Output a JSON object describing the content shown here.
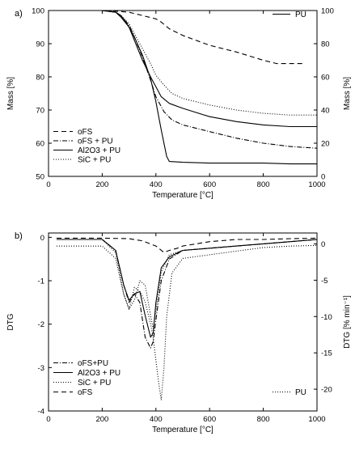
{
  "chart_data": [
    {
      "panel_label": "a)",
      "type": "line",
      "xlabel": "Temperature [°C]",
      "ylabel": "Mass [%]",
      "ylabel_right": "Mass [%]",
      "xlim": [
        0,
        1000
      ],
      "ylim": [
        50,
        100
      ],
      "ylim_right": [
        0,
        100
      ],
      "x_ticks": [
        0,
        200,
        400,
        600,
        800,
        1000
      ],
      "y_ticks": [
        50,
        60,
        70,
        80,
        90,
        100
      ],
      "y_ticks_right": [
        0,
        20,
        40,
        60,
        80,
        100
      ],
      "grid": false,
      "legend_left_position": "bottom-left",
      "legend_right_position": "top-right",
      "series": [
        {
          "name": "oFS",
          "axis": "left",
          "dash": "6,4",
          "x": [
            30,
            100,
            200,
            250,
            300,
            350,
            400,
            420,
            450,
            500,
            600,
            700,
            800,
            850,
            900,
            950
          ],
          "y": [
            100,
            100,
            100,
            99.8,
            99.5,
            98.5,
            97.5,
            96.5,
            94.5,
            92.5,
            89.5,
            87.5,
            85,
            84,
            84,
            84
          ]
        },
        {
          "name": "oFS + PU",
          "axis": "left",
          "dash": "6,2,1,2",
          "x": [
            30,
            100,
            200,
            250,
            270,
            300,
            320,
            350,
            380,
            400,
            430,
            460,
            500,
            600,
            700,
            800,
            900,
            1000
          ],
          "y": [
            100,
            100,
            100,
            99.5,
            98.5,
            95.5,
            92,
            86,
            79,
            74,
            69.5,
            67,
            65.5,
            63.5,
            61.5,
            60,
            59,
            58.5
          ]
        },
        {
          "name": "Al2O3 + PU",
          "axis": "left",
          "dash": "",
          "x": [
            30,
            100,
            200,
            250,
            270,
            300,
            320,
            350,
            380,
            400,
            420,
            450,
            500,
            600,
            700,
            800,
            900,
            1000
          ],
          "y": [
            100,
            100,
            100,
            99.5,
            98.5,
            95,
            91,
            85,
            80,
            77,
            74,
            72,
            70.5,
            68,
            66.5,
            65.5,
            65,
            65
          ]
        },
        {
          "name": "SiC + PU",
          "axis": "left",
          "dash": "1,2",
          "x": [
            30,
            100,
            200,
            250,
            270,
            300,
            320,
            350,
            380,
            400,
            430,
            460,
            500,
            600,
            700,
            800,
            900,
            1000
          ],
          "y": [
            100,
            100,
            100,
            99.5,
            98.5,
            96,
            93,
            88.5,
            84,
            80.5,
            77.5,
            75,
            73.5,
            71.5,
            70,
            69,
            68.5,
            68.5
          ]
        },
        {
          "name": "PU",
          "axis": "right",
          "dash": "",
          "x": [
            30,
            100,
            200,
            250,
            270,
            300,
            320,
            350,
            380,
            400,
            420,
            440,
            450,
            500,
            600,
            700,
            800,
            900,
            1000
          ],
          "y": [
            100,
            100,
            100,
            99,
            96,
            90,
            84,
            73,
            59,
            45,
            28,
            12,
            9,
            8.5,
            8,
            8,
            8,
            7.5,
            7.5
          ]
        }
      ]
    },
    {
      "panel_label": "b)",
      "type": "line",
      "xlabel": "Temperature [°C]",
      "ylabel": "DTG",
      "ylabel_right": "DTG [% min⁻¹]",
      "xlim": [
        0,
        1000
      ],
      "ylim": [
        -4,
        0.1
      ],
      "ylim_right": [
        -23,
        1.5
      ],
      "x_ticks": [
        0,
        200,
        400,
        600,
        800,
        1000
      ],
      "y_ticks": [
        0,
        -1,
        -2,
        -3,
        -4
      ],
      "y_ticks_right": [
        0,
        -5,
        -10,
        -15,
        -20
      ],
      "grid": false,
      "legend_left_position": "bottom-left",
      "legend_right_position": "bottom-right",
      "series": [
        {
          "name": "oFS+PU",
          "axis": "left",
          "dash": "6,2,1,2",
          "x": [
            30,
            100,
            200,
            250,
            280,
            300,
            320,
            340,
            360,
            380,
            390,
            400,
            420,
            450,
            500,
            600,
            700,
            800,
            900,
            1000
          ],
          "y": [
            -0.05,
            -0.05,
            -0.05,
            -0.3,
            -1.1,
            -1.5,
            -1.3,
            -1.5,
            -2.3,
            -2.55,
            -2.4,
            -1.9,
            -1,
            -0.5,
            -0.3,
            -0.25,
            -0.2,
            -0.15,
            -0.1,
            -0.05
          ]
        },
        {
          "name": "Al2O3 + PU",
          "axis": "left",
          "dash": "",
          "x": [
            30,
            100,
            200,
            250,
            280,
            300,
            320,
            340,
            360,
            380,
            390,
            400,
            420,
            450,
            500,
            600,
            700,
            800,
            900,
            1000
          ],
          "y": [
            -0.05,
            -0.05,
            -0.05,
            -0.3,
            -1.1,
            -1.45,
            -1.3,
            -1.25,
            -1.8,
            -2.3,
            -2.2,
            -1.5,
            -0.7,
            -0.45,
            -0.3,
            -0.25,
            -0.2,
            -0.15,
            -0.1,
            -0.05
          ]
        },
        {
          "name": "SiC + PU",
          "axis": "left",
          "dash": "1,2",
          "x": [
            30,
            100,
            200,
            250,
            280,
            300,
            320,
            340,
            360,
            380,
            390,
            400,
            420,
            450,
            500,
            600,
            700,
            800,
            900,
            1000
          ],
          "y": [
            -0.05,
            -0.05,
            -0.05,
            -0.35,
            -1.3,
            -1.65,
            -1.45,
            -1.0,
            -1.1,
            -1.8,
            -2.1,
            -1.7,
            -0.8,
            -0.4,
            -0.3,
            -0.25,
            -0.2,
            -0.15,
            -0.1,
            -0.05
          ]
        },
        {
          "name": "oFS",
          "axis": "left",
          "dash": "6,4",
          "x": [
            30,
            100,
            200,
            300,
            350,
            400,
            430,
            450,
            480,
            500,
            600,
            700,
            800,
            900,
            1000
          ],
          "y": [
            -0.02,
            -0.02,
            -0.02,
            -0.03,
            -0.08,
            -0.2,
            -0.35,
            -0.3,
            -0.25,
            -0.2,
            -0.1,
            -0.05,
            -0.05,
            -0.03,
            -0.02
          ]
        },
        {
          "name": "PU",
          "axis": "right",
          "dash": "1,2",
          "x": [
            30,
            100,
            200,
            250,
            280,
            300,
            320,
            340,
            360,
            380,
            390,
            400,
            410,
            420,
            430,
            440,
            460,
            500,
            600,
            700,
            800,
            900,
            1000
          ],
          "y": [
            -0.3,
            -0.3,
            -0.3,
            -2,
            -7,
            -9,
            -6,
            -6.5,
            -8,
            -11,
            -13,
            -16,
            -19,
            -21.5,
            -17,
            -10,
            -4,
            -2,
            -1.5,
            -1,
            -0.5,
            -0.3,
            -0.2
          ]
        }
      ]
    }
  ]
}
